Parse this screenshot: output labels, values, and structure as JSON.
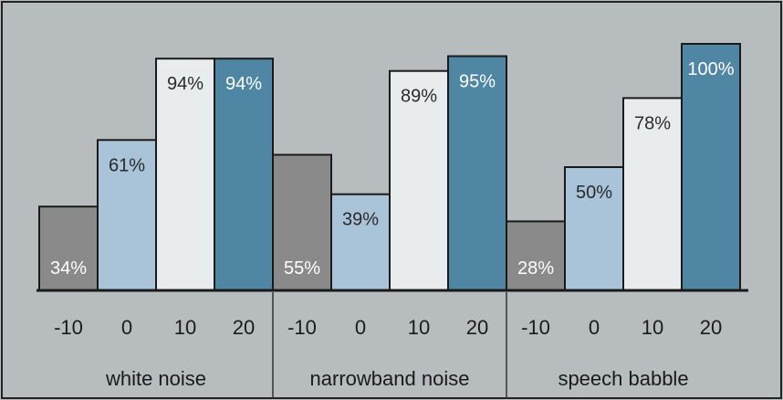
{
  "chart_data": {
    "type": "bar",
    "groups": [
      {
        "label": "white noise",
        "categories": [
          "-10",
          "0",
          "10",
          "20"
        ],
        "values": [
          34,
          61,
          94,
          94
        ]
      },
      {
        "label": "narrowband noise",
        "categories": [
          "-10",
          "0",
          "10",
          "20"
        ],
        "values": [
          55,
          39,
          89,
          95
        ]
      },
      {
        "label": "speech babble",
        "categories": [
          "-10",
          "0",
          "10",
          "20"
        ],
        "values": [
          28,
          50,
          78,
          100
        ]
      }
    ],
    "value_suffix": "%",
    "ylim": [
      0,
      100
    ],
    "grid": false,
    "legend": "none",
    "series_colors": [
      "#8a8a8a",
      "#a9c3d8",
      "#e9ecec",
      "#4f86a4"
    ],
    "label_colors": [
      "#ffffff",
      "#2a2a2a",
      "#2a2a2a",
      "#ffffff"
    ],
    "background_color": "#b7bdbf",
    "baseline_color": "#1a1a1a"
  }
}
